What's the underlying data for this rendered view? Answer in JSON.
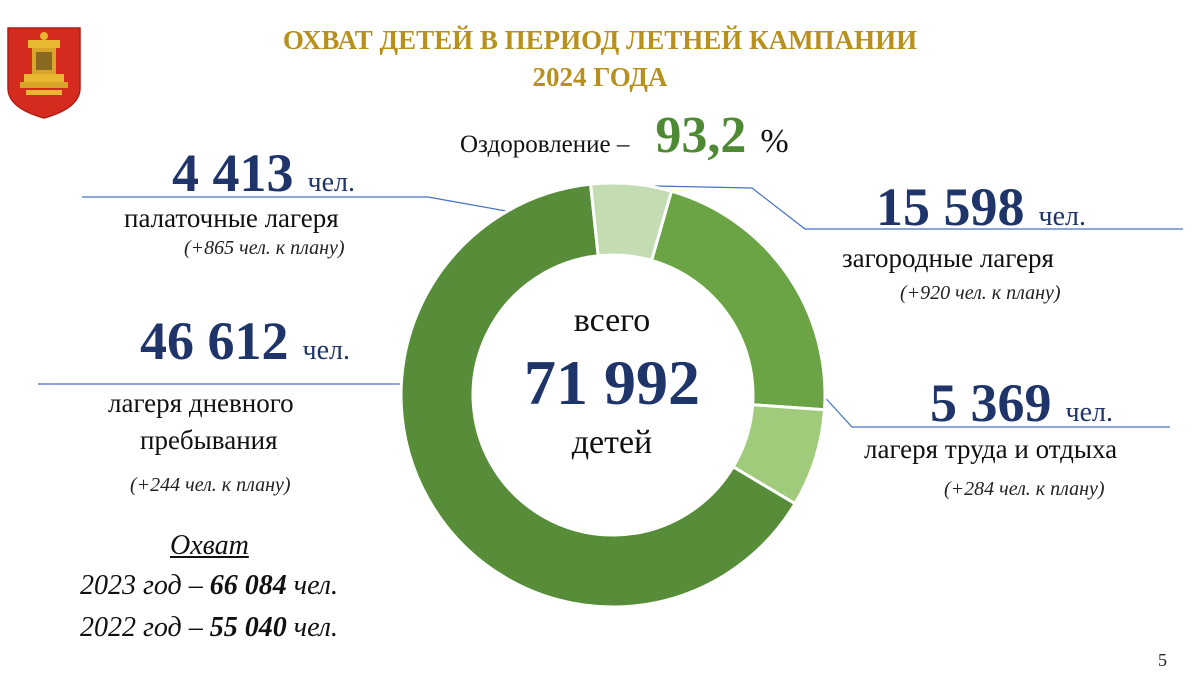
{
  "title_line1": "ОХВАТ ДЕТЕЙ В ПЕРИОД ЛЕТНЕЙ КАМПАНИИ",
  "title_line2": "2024 ГОДА",
  "health": {
    "label": "Оздоровление –",
    "value": "93,2",
    "unit": "%"
  },
  "center": {
    "top": "всего",
    "value": "71 992",
    "bottom": "детей"
  },
  "unit_label": "чел.",
  "segments": {
    "tent": {
      "value": "4 413",
      "label": "палаточные лагеря",
      "plan": "(+865 чел. к плану)"
    },
    "country": {
      "value": "15 598",
      "label": "загородные лагеря",
      "plan": "(+920 чел. к плану)"
    },
    "labor": {
      "value": "5 369",
      "label": "лагеря труда и отдыха",
      "plan": "(+284 чел. к плану)"
    },
    "day": {
      "value": "46 612",
      "label_line1": "лагеря дневного",
      "label_line2": "пребывания",
      "plan": "(+244 чел. к плану)"
    }
  },
  "history": {
    "title": "Охват",
    "y2023_prefix": "2023 год – ",
    "y2023_value": "66 084",
    "y2022_prefix": "2022 год – ",
    "y2022_value": "55 040",
    "suffix": " чел."
  },
  "page_number": "5",
  "chart_data": {
    "type": "pie",
    "donut": true,
    "total": 71992,
    "slices": [
      {
        "name": "загородные лагеря",
        "value": 15598,
        "color": "#6aa444"
      },
      {
        "name": "лагеря труда и отдыха",
        "value": 5369,
        "color": "#9fcb7b"
      },
      {
        "name": "лагеря дневного пребывания",
        "value": 46612,
        "color": "#578c39"
      },
      {
        "name": "палаточные лагеря",
        "value": 4413,
        "color": "#c3dcb1"
      }
    ]
  }
}
